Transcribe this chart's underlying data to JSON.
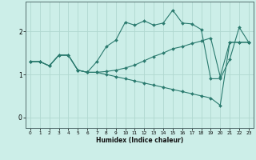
{
  "title": "",
  "xlabel": "Humidex (Indice chaleur)",
  "background_color": "#cceee8",
  "line_color": "#2a7a6e",
  "grid_color": "#b0d8d0",
  "x_ticks": [
    0,
    1,
    2,
    3,
    4,
    5,
    6,
    7,
    8,
    9,
    10,
    11,
    12,
    13,
    14,
    15,
    16,
    17,
    18,
    19,
    20,
    21,
    22,
    23
  ],
  "y_ticks": [
    0,
    1,
    2
  ],
  "xlim": [
    -0.5,
    23.5
  ],
  "ylim": [
    -0.25,
    2.7
  ],
  "lines": [
    {
      "x": [
        0,
        1,
        2,
        3,
        4,
        5,
        6,
        7,
        8,
        9,
        10,
        11,
        12,
        13,
        14,
        15,
        16,
        17,
        18,
        19,
        20,
        21,
        22,
        23
      ],
      "y": [
        1.3,
        1.3,
        1.2,
        1.45,
        1.45,
        1.1,
        1.05,
        1.3,
        1.65,
        1.8,
        2.22,
        2.15,
        2.25,
        2.15,
        2.2,
        2.5,
        2.2,
        2.18,
        2.05,
        0.9,
        0.9,
        1.35,
        2.1,
        1.75
      ]
    },
    {
      "x": [
        0,
        1,
        2,
        3,
        4,
        5,
        6,
        7,
        8,
        9,
        10,
        11,
        12,
        13,
        14,
        15,
        16,
        17,
        18,
        19,
        20,
        21,
        22,
        23
      ],
      "y": [
        1.3,
        1.3,
        1.2,
        1.45,
        1.45,
        1.1,
        1.05,
        1.05,
        1.07,
        1.1,
        1.15,
        1.22,
        1.32,
        1.42,
        1.5,
        1.6,
        1.65,
        1.72,
        1.78,
        1.85,
        0.95,
        1.75,
        1.75,
        1.75
      ]
    },
    {
      "x": [
        0,
        1,
        2,
        3,
        4,
        5,
        6,
        7,
        8,
        9,
        10,
        11,
        12,
        13,
        14,
        15,
        16,
        17,
        18,
        19,
        20,
        21,
        22,
        23
      ],
      "y": [
        1.3,
        1.3,
        1.2,
        1.45,
        1.45,
        1.1,
        1.05,
        1.05,
        1.0,
        0.95,
        0.9,
        0.85,
        0.8,
        0.75,
        0.7,
        0.65,
        0.6,
        0.55,
        0.5,
        0.45,
        0.28,
        1.75,
        1.75,
        1.75
      ]
    }
  ]
}
